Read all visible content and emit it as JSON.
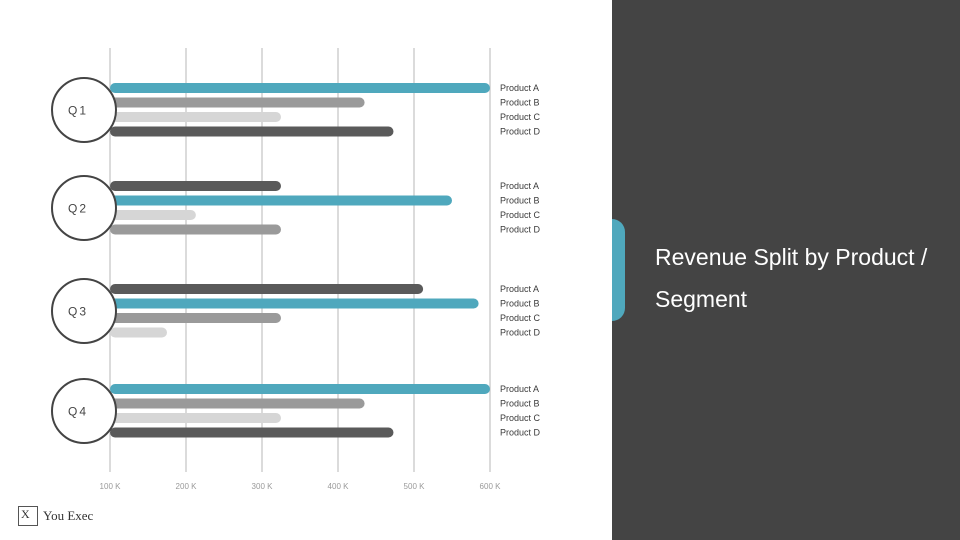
{
  "slide": {
    "title": "Revenue Split by Product / Segment",
    "logo_mark": "X",
    "logo_text": "You Exec",
    "panel_color": "#444444",
    "accent_color": "#4fa8bd"
  },
  "chart_data": {
    "type": "bar",
    "orientation": "horizontal",
    "title": "",
    "xlabel": "",
    "ylabel": "",
    "categories": [
      "Q1",
      "Q2",
      "Q3",
      "Q4"
    ],
    "xlim": [
      100,
      600
    ],
    "x_ticks": [
      "100 K",
      "200 K",
      "300 K",
      "400 K",
      "500 K",
      "600 K"
    ],
    "tick_values": [
      100,
      200,
      300,
      400,
      500,
      600
    ],
    "grid": true,
    "legend_labels": [
      "Product A",
      "Product B",
      "Product C",
      "Product D"
    ],
    "groups": [
      {
        "quarter": "Q1",
        "bars": [
          {
            "product": "Product A",
            "value": 600,
            "color": "#4fa8bd"
          },
          {
            "product": "Product B",
            "value": 435,
            "color": "#9a9a9a"
          },
          {
            "product": "Product C",
            "value": 325,
            "color": "#d6d6d6"
          },
          {
            "product": "Product D",
            "value": 473,
            "color": "#5a5a5a"
          }
        ]
      },
      {
        "quarter": "Q2",
        "bars": [
          {
            "product": "Product A",
            "value": 325,
            "color": "#5a5a5a"
          },
          {
            "product": "Product B",
            "value": 550,
            "color": "#4fa8bd"
          },
          {
            "product": "Product C",
            "value": 213,
            "color": "#d6d6d6"
          },
          {
            "product": "Product D",
            "value": 325,
            "color": "#9a9a9a"
          }
        ]
      },
      {
        "quarter": "Q3",
        "bars": [
          {
            "product": "Product A",
            "value": 512,
            "color": "#5a5a5a"
          },
          {
            "product": "Product B",
            "value": 585,
            "color": "#4fa8bd"
          },
          {
            "product": "Product C",
            "value": 325,
            "color": "#9a9a9a"
          },
          {
            "product": "Product D",
            "value": 175,
            "color": "#d6d6d6"
          }
        ]
      },
      {
        "quarter": "Q4",
        "bars": [
          {
            "product": "Product A",
            "value": 600,
            "color": "#4fa8bd"
          },
          {
            "product": "Product B",
            "value": 435,
            "color": "#9a9a9a"
          },
          {
            "product": "Product C",
            "value": 325,
            "color": "#d6d6d6"
          },
          {
            "product": "Product D",
            "value": 473,
            "color": "#5a5a5a"
          }
        ]
      }
    ]
  }
}
